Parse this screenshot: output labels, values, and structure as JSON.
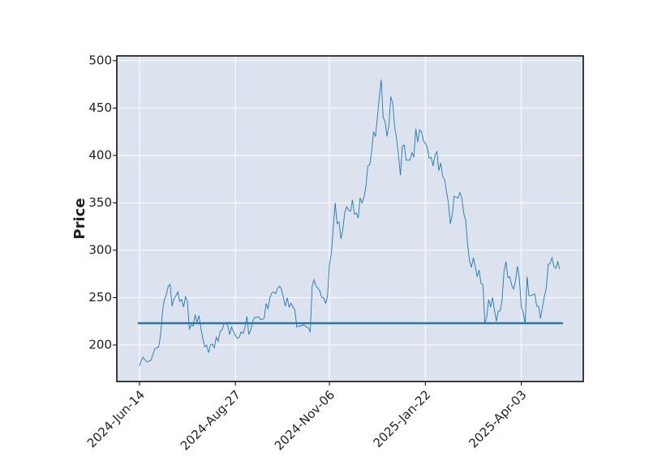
{
  "chart_data": {
    "type": "line",
    "ylabel": "Price",
    "x": [
      0,
      1,
      2,
      3,
      4,
      5,
      6,
      7,
      8,
      9,
      10,
      11,
      12,
      13,
      14,
      15,
      16,
      17,
      18,
      19,
      20,
      21,
      22,
      23,
      24,
      25,
      26,
      27,
      28,
      29,
      30,
      31,
      32,
      33,
      34,
      35,
      36,
      37,
      38,
      39,
      40,
      41,
      42,
      43,
      44,
      45,
      46,
      47,
      48,
      49,
      50,
      51,
      52,
      53,
      54,
      55,
      56,
      57,
      58,
      59,
      60,
      61,
      62,
      63,
      64,
      65,
      66,
      67,
      68,
      69,
      70,
      71,
      72,
      73,
      74,
      75,
      76,
      77,
      78,
      79,
      80,
      81,
      82,
      83,
      84,
      85,
      86,
      87,
      88,
      89,
      90,
      91,
      92,
      93,
      94,
      95,
      96,
      97,
      98,
      99,
      100,
      101,
      102,
      103,
      104,
      105,
      106,
      107,
      108,
      109,
      110,
      111,
      112,
      113,
      114,
      115,
      116,
      117,
      118,
      119,
      120,
      121,
      122,
      123,
      124,
      125,
      126,
      127,
      128,
      129,
      130,
      131,
      132,
      133,
      134,
      135,
      136,
      137,
      138,
      139,
      140,
      141,
      142,
      143,
      144,
      145,
      146,
      147,
      148,
      149,
      150,
      151,
      152,
      153,
      154,
      155,
      156,
      157,
      158,
      159,
      160,
      161,
      162,
      163,
      164,
      165,
      166,
      167,
      168,
      169,
      170,
      171,
      172,
      173,
      174,
      175,
      176,
      177,
      178,
      179,
      180,
      181,
      182,
      183,
      184,
      185,
      186,
      187,
      188,
      189,
      190,
      191,
      192,
      193,
      194,
      195,
      196,
      197,
      198,
      199,
      200,
      201,
      202,
      203,
      204,
      205,
      206,
      207,
      208,
      209,
      210,
      211,
      212,
      213,
      214,
      215,
      216,
      217,
      218,
      219
    ],
    "series": [
      {
        "color": "#1f77b4",
        "values": [
          178,
          184,
          187,
          184,
          182,
          183,
          184,
          190,
          196,
          197,
          198,
          210,
          235,
          248,
          253,
          262,
          264,
          241,
          249,
          252,
          256,
          246,
          248,
          240,
          251,
          246,
          217,
          221,
          220,
          232,
          224,
          231,
          218,
          207,
          198,
          200,
          192,
          200,
          201,
          197,
          208,
          204,
          214,
          216,
          222,
          223,
          221,
          211,
          219,
          214,
          210,
          207,
          208,
          214,
          212,
          219,
          230,
          211,
          216,
          225,
          229,
          229,
          230,
          227,
          227,
          228,
          244,
          238,
          250,
          255,
          256,
          254,
          260,
          262,
          259,
          250,
          241,
          250,
          240,
          244,
          240,
          237,
          219,
          220,
          220,
          221,
          221,
          219,
          218,
          214,
          262,
          269,
          262,
          260,
          257,
          250,
          250,
          244,
          251,
          285,
          296,
          324,
          350,
          328,
          330,
          312,
          322,
          340,
          346,
          342,
          341,
          353,
          338,
          339,
          334,
          355,
          350,
          356,
          367,
          389,
          390,
          404,
          425,
          420,
          440,
          462,
          480,
          440,
          436,
          420,
          432,
          462,
          455,
          430,
          418,
          400,
          379,
          410,
          411,
          395,
          395,
          395,
          403,
          398,
          428,
          414,
          427,
          425,
          415,
          413,
          408,
          397,
          398,
          389,
          400,
          404,
          384,
          392,
          378,
          375,
          362,
          350,
          328,
          337,
          357,
          356,
          355,
          361,
          355,
          339,
          332,
          306,
          289,
          282,
          292,
          283,
          272,
          279,
          265,
          264,
          222,
          230,
          248,
          240,
          250,
          237,
          225,
          236,
          236,
          248,
          278,
          288,
          271,
          272,
          263,
          259,
          268,
          283,
          270,
          240,
          234,
          222,
          272,
          252,
          252,
          253,
          254,
          241,
          241,
          228,
          240,
          251,
          260,
          285,
          286,
          292,
          283,
          281,
          288,
          280
        ]
      }
    ],
    "hlines": [
      {
        "value": 223,
        "color": "#1f77b4"
      }
    ],
    "xlim": [
      -11.8,
      231.3
    ],
    "xticks": [
      {
        "value": 0,
        "label": "2024-Jun-14"
      },
      {
        "value": 50,
        "label": "2024-Aug-27"
      },
      {
        "value": 99,
        "label": "2024-Nov-06"
      },
      {
        "value": 149,
        "label": "2025-Jan-22"
      },
      {
        "value": 199,
        "label": "2025-Apr-03"
      }
    ],
    "ylim": [
      161.5,
      505
    ],
    "yticks": [
      200,
      250,
      300,
      350,
      400,
      450,
      500
    ],
    "grid": true,
    "background": "#dce3ef"
  }
}
